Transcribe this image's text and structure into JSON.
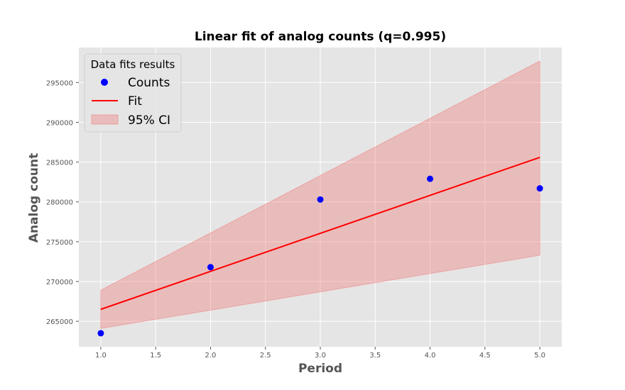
{
  "chart_data": {
    "type": "scatter",
    "title": "Linear fit of analog counts (q=0.995)",
    "xlabel": "Period",
    "ylabel": "Analog count",
    "xlim": [
      0.8,
      5.2
    ],
    "ylim": [
      261800,
      299400
    ],
    "xticks": [
      1.0,
      1.5,
      2.0,
      2.5,
      3.0,
      3.5,
      4.0,
      4.5,
      5.0
    ],
    "xtick_labels": [
      "1.0",
      "1.5",
      "2.0",
      "2.5",
      "3.0",
      "3.5",
      "4.0",
      "4.5",
      "5.0"
    ],
    "yticks": [
      265000,
      270000,
      275000,
      280000,
      285000,
      290000,
      295000
    ],
    "ytick_labels": [
      "265000",
      "270000",
      "275000",
      "280000",
      "285000",
      "290000",
      "295000"
    ],
    "grid": true,
    "legend": {
      "title": "Data fits results",
      "placement": "top-left",
      "entries": [
        {
          "label": "Counts",
          "kind": "marker"
        },
        {
          "label": "Fit",
          "kind": "line"
        },
        {
          "label": "95% CI",
          "kind": "patch"
        }
      ]
    },
    "series": [
      {
        "name": "Counts",
        "type": "scatter",
        "color": "#0000ff",
        "x": [
          1,
          2,
          3,
          4,
          5
        ],
        "y": [
          263500,
          271800,
          280300,
          282900,
          281700
        ]
      },
      {
        "name": "Fit",
        "type": "line",
        "color": "#ff0000",
        "x": [
          1,
          5
        ],
        "y": [
          266500,
          285600
        ]
      },
      {
        "name": "95% CI",
        "type": "area",
        "color": "#f08080",
        "x": [
          1,
          5
        ],
        "lower": [
          264100,
          273300
        ],
        "upper": [
          268900,
          297700
        ]
      }
    ],
    "colors": {
      "plot_background": "#e5e5e5",
      "grid": "#ffffff"
    }
  }
}
